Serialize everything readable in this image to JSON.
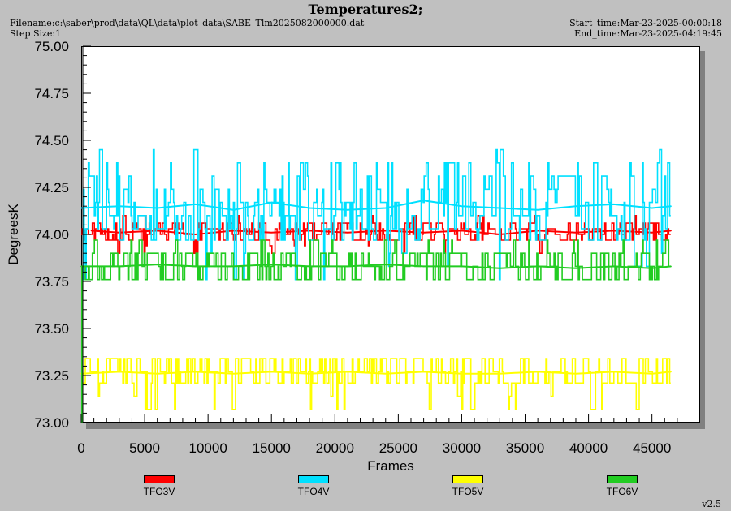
{
  "header": {
    "title": "Temperatures2;",
    "filename": "Filename:c:\\saber\\prod\\data\\QL\\data\\plot_data\\SABE_Tlm2025082000000.dat",
    "step_size": "Step Size:1",
    "start_time": "Start_time:Mar-23-2025-00:00:18",
    "end_time": "End_time:Mar-23-2025-04:19:45"
  },
  "footer": {
    "version": "v2.5"
  },
  "chart_data": {
    "type": "line",
    "title": "Temperatures2;",
    "xlabel": "Frames",
    "ylabel": "DegreesK",
    "xlim": [
      0,
      48800
    ],
    "ylim": [
      73.0,
      75.0
    ],
    "xticks": [
      0,
      5000,
      10000,
      15000,
      20000,
      25000,
      30000,
      35000,
      40000,
      45000
    ],
    "xtick_labels": [
      "0",
      "5000",
      "10000",
      "15000",
      "20000",
      "25000",
      "30000",
      "35000",
      "40000",
      "45000"
    ],
    "yticks": [
      73.0,
      73.25,
      73.5,
      73.75,
      74.0,
      74.25,
      74.5,
      74.75,
      75.0
    ],
    "ytick_labels": [
      "73.00",
      "73.25",
      "73.50",
      "73.75",
      "74.00",
      "74.25",
      "74.50",
      "74.75",
      "75.00"
    ],
    "grid": false,
    "legend_position": "bottom",
    "x_end": 46500,
    "series": [
      {
        "name": "TFO3V",
        "color": "#ff0000",
        "base": 74.0,
        "levels": [
          73.97,
          74.0,
          74.03,
          74.06
        ],
        "occasional": [
          73.94,
          73.9,
          74.1
        ],
        "x": [
          800,
          3000,
          6000,
          9000,
          12000,
          15000,
          18000,
          21000,
          24000,
          27000,
          30000,
          33000,
          36000,
          39000,
          42000,
          45000,
          46500
        ],
        "y": [
          74.02,
          74.01,
          74.02,
          74.0,
          74.02,
          74.01,
          74.02,
          74.01,
          74.02,
          74.01,
          74.02,
          74.0,
          74.02,
          74.01,
          74.02,
          74.01,
          74.02
        ]
      },
      {
        "name": "TFO4V",
        "color": "#00e0ff",
        "base": 74.1,
        "levels": [
          73.97,
          74.03,
          74.1,
          74.17,
          74.24,
          74.31,
          74.38
        ],
        "occasional": [
          73.9,
          73.83,
          73.76,
          74.45
        ],
        "x": [
          0,
          3000,
          6000,
          9000,
          12000,
          15000,
          18000,
          21000,
          24000,
          27000,
          30000,
          33000,
          36000,
          39000,
          42000,
          45000,
          46500
        ],
        "y": [
          74.14,
          74.15,
          74.14,
          74.16,
          74.13,
          74.17,
          74.14,
          74.13,
          74.14,
          74.18,
          74.15,
          74.14,
          74.13,
          74.15,
          74.16,
          74.14,
          74.15
        ]
      },
      {
        "name": "TFO5V",
        "color": "#ffff00",
        "base": 73.27,
        "levels": [
          73.21,
          73.27,
          73.34
        ],
        "occasional": [
          73.14,
          73.07
        ],
        "x": [
          0,
          3000,
          6000,
          9000,
          12000,
          15000,
          18000,
          21000,
          24000,
          27000,
          30000,
          33000,
          36000,
          39000,
          42000,
          45000,
          46500
        ],
        "y": [
          73.26,
          73.27,
          73.26,
          73.27,
          73.26,
          73.27,
          73.26,
          73.27,
          73.26,
          73.27,
          73.26,
          73.26,
          73.27,
          73.26,
          73.27,
          73.26,
          73.27
        ]
      },
      {
        "name": "TFO6V",
        "color": "#22cc22",
        "base": 73.83,
        "levels": [
          73.76,
          73.83,
          73.9
        ],
        "occasional": [
          73.97
        ],
        "x": [
          0,
          3000,
          6000,
          9000,
          12000,
          15000,
          18000,
          21000,
          24000,
          27000,
          30000,
          33000,
          36000,
          39000,
          42000,
          45000,
          46500
        ],
        "y": [
          73.83,
          73.83,
          73.84,
          73.83,
          73.83,
          73.84,
          73.83,
          73.83,
          73.84,
          73.83,
          73.83,
          73.82,
          73.83,
          73.82,
          73.83,
          73.82,
          73.83
        ]
      }
    ]
  }
}
